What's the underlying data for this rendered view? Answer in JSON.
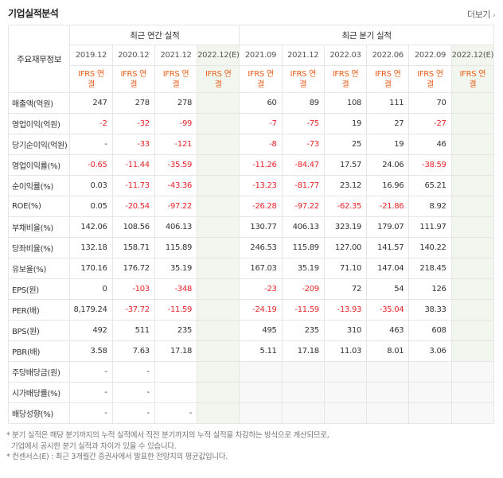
{
  "title": "기업실적분석",
  "more": {
    "label": "더보기",
    "icon": "chevron-right-icon"
  },
  "table": {
    "corner_label": "주요재무정보",
    "annual_group": "최근 연간 실적",
    "quarter_group": "최근 분기 실적",
    "annual_periods": [
      "2019.12",
      "2020.12",
      "2021.12",
      "2022.12(E)"
    ],
    "quarter_periods": [
      "2021.09",
      "2021.12",
      "2022.03",
      "2022.06",
      "2022.09",
      "2022.12(E)"
    ],
    "basis": "IFRS 연결",
    "rows": [
      {
        "label": "매출액(억원)",
        "a": [
          "247",
          "278",
          "278",
          ""
        ],
        "q": [
          "60",
          "89",
          "108",
          "111",
          "70",
          ""
        ]
      },
      {
        "label": "영업이익(억원)",
        "a": [
          "-2",
          "-32",
          "-99",
          ""
        ],
        "q": [
          "-7",
          "-75",
          "19",
          "27",
          "-27",
          ""
        ]
      },
      {
        "label": "당기순이익(억원)",
        "a": [
          "-",
          "-33",
          "-121",
          ""
        ],
        "q": [
          "-8",
          "-73",
          "25",
          "19",
          "46",
          ""
        ]
      },
      {
        "label": "영업이익률(%)",
        "a": [
          "-0.65",
          "-11.44",
          "-35.59",
          ""
        ],
        "q": [
          "-11.26",
          "-84.47",
          "17.57",
          "24.06",
          "-38.59",
          ""
        ]
      },
      {
        "label": "순이익률(%)",
        "a": [
          "0.03",
          "-11.73",
          "-43.36",
          ""
        ],
        "q": [
          "-13.23",
          "-81.77",
          "23.12",
          "16.96",
          "65.21",
          ""
        ]
      },
      {
        "label": "ROE(%)",
        "a": [
          "0.05",
          "-20.54",
          "-97.22",
          ""
        ],
        "q": [
          "-26.28",
          "-97.22",
          "-62.35",
          "-21.86",
          "8.92",
          ""
        ]
      },
      {
        "label": "부채비율(%)",
        "a": [
          "142.06",
          "108.56",
          "406.13",
          ""
        ],
        "q": [
          "130.77",
          "406.13",
          "323.19",
          "179.07",
          "111.97",
          ""
        ]
      },
      {
        "label": "당좌비율(%)",
        "a": [
          "132.18",
          "158.71",
          "115.89",
          ""
        ],
        "q": [
          "246.53",
          "115.89",
          "127.00",
          "141.57",
          "140.22",
          ""
        ]
      },
      {
        "label": "유보율(%)",
        "a": [
          "170.16",
          "176.72",
          "35.19",
          ""
        ],
        "q": [
          "167.03",
          "35.19",
          "71.10",
          "147.04",
          "218.45",
          ""
        ]
      },
      {
        "label": "EPS(원)",
        "a": [
          "0",
          "-103",
          "-348",
          ""
        ],
        "q": [
          "-23",
          "-209",
          "72",
          "54",
          "126",
          ""
        ]
      },
      {
        "label": "PER(배)",
        "a": [
          "8,179.24",
          "-37.72",
          "-11.59",
          ""
        ],
        "q": [
          "-24.19",
          "-11.59",
          "-13.93",
          "-35.04",
          "38.33",
          ""
        ]
      },
      {
        "label": "BPS(원)",
        "a": [
          "492",
          "511",
          "235",
          ""
        ],
        "q": [
          "495",
          "235",
          "310",
          "463",
          "608",
          ""
        ]
      },
      {
        "label": "PBR(배)",
        "a": [
          "3.58",
          "7.63",
          "17.18",
          ""
        ],
        "q": [
          "5.11",
          "17.18",
          "11.03",
          "8.01",
          "3.06",
          ""
        ]
      },
      {
        "label": "주당배당금(원)",
        "a": [
          "-",
          "-",
          "",
          ""
        ],
        "q": null
      },
      {
        "label": "시가배당률(%)",
        "a": [
          "-",
          "-",
          "",
          ""
        ],
        "q": null
      },
      {
        "label": "배당성향(%)",
        "a": [
          "-",
          "-",
          "-",
          ""
        ],
        "q": null
      }
    ]
  },
  "notes": [
    "* 분기 실적은 해당 분기까지의 누적 실적에서 직전 분기까지의 누적 실적을 차감하는 방식으로 계산되므로,",
    "기업에서 공시한 분기 실적과 차이가 있을 수 있습니다.",
    "* 컨센서스(E) : 최근 3개월간 증권사에서 발표한 전망치의 평균값입니다."
  ],
  "colors": {
    "negative": "#e8242a",
    "ifrs": "#ec5d1a",
    "estimate_bg": "#f1f7ee"
  }
}
